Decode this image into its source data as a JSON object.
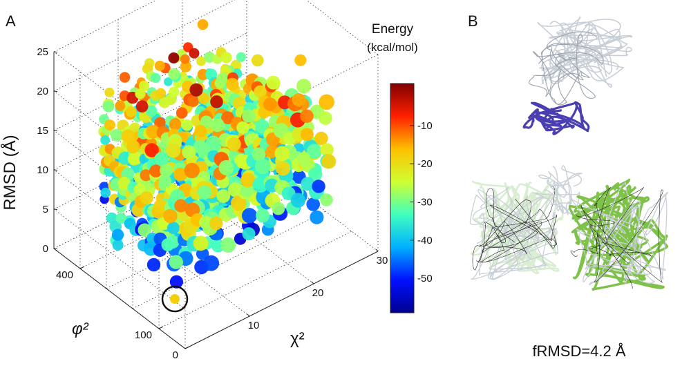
{
  "panels": {
    "a_label": "A",
    "b_label": "B"
  },
  "chart_data": {
    "type": "scatter",
    "projection": "3d",
    "zlabel": "RMSD (Å)",
    "ylabel": "φ²",
    "xlabel": "χ²",
    "zlim": [
      0,
      25
    ],
    "ylim": [
      0,
      500
    ],
    "xlim": [
      0,
      30
    ],
    "z_ticks": [
      "0",
      "5",
      "10",
      "15",
      "20",
      "25"
    ],
    "y_ticks": [
      "0",
      "100",
      "400"
    ],
    "x_ticks": [
      "10",
      "20",
      "30"
    ],
    "grid": true,
    "colorbar": {
      "title": "Energy",
      "unit": "(kcal/mol)",
      "range": [
        -59,
        1
      ],
      "ticks": [
        "-10",
        "-20",
        "-30",
        "-40",
        "-50"
      ],
      "colormap": [
        "#00008f",
        "#0010ff",
        "#00b0ff",
        "#40ffbf",
        "#cfff30",
        "#ffc000",
        "#ff2000",
        "#800000"
      ]
    },
    "highlighted_point": {
      "x": 2,
      "y": 60,
      "z": 0.5,
      "energy": -18
    },
    "cloud": {
      "n_points": 950,
      "x_range": [
        1,
        26
      ],
      "y_range": [
        60,
        480
      ],
      "z_range": [
        1,
        24
      ],
      "energy_range": [
        -58,
        0
      ]
    }
  },
  "structure_panel": {
    "caption": "fRMSD=4.2 Å",
    "colors": {
      "ghost": "#c9cfd6",
      "top_chain": "#4a3fb0",
      "green_chain": "#7ec24a",
      "light_green": "#d8eed0",
      "dark_trace": "#222222"
    }
  }
}
